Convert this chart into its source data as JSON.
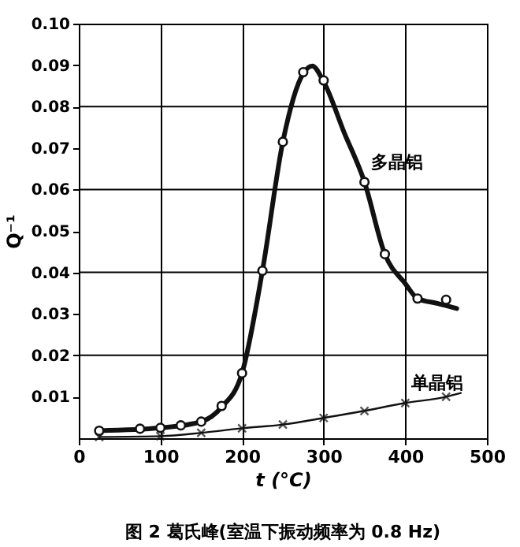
{
  "chart_data": {
    "type": "line",
    "title": "图 2  葛氏峰(室温下振动频率为 0.8 Hz)",
    "xlabel": "t (°C)",
    "ylabel": "Q⁻¹",
    "xlim": [
      0,
      500
    ],
    "xticks": [
      0,
      100,
      200,
      300,
      400,
      500
    ],
    "ylim": [
      0,
      0.1
    ],
    "yticks": [
      0.01,
      0.02,
      0.03,
      0.04,
      0.05,
      0.06,
      0.07,
      0.08,
      0.09,
      {
        "value": 0.1,
        "label": "0.10"
      }
    ],
    "grid": true,
    "series": [
      {
        "color": "#111111",
        "marker": "none",
        "x": [
          25,
          100,
          150,
          175,
          200,
          225,
          250,
          275,
          286,
          300,
          325,
          350,
          375,
          400,
          415,
          440,
          463
        ],
        "values": [
          0.0018,
          0.0025,
          0.004,
          0.0075,
          0.0157,
          0.0404,
          0.0715,
          0.088,
          0.0898,
          0.086,
          0.0738,
          0.0618,
          0.0444,
          0.0373,
          0.0337,
          0.0325,
          0.0313
        ]
      },
      {
        "type": "scatter",
        "color": "#111111",
        "marker": "circle",
        "x": [
          25,
          75,
          100,
          125,
          150,
          175,
          200,
          225,
          250,
          275,
          300,
          350,
          375,
          415,
          450
        ],
        "values": [
          0.0018,
          0.0023,
          0.0025,
          0.0031,
          0.004,
          0.0078,
          0.0157,
          0.0404,
          0.0715,
          0.0883,
          0.0863,
          0.0618,
          0.0444,
          0.0337,
          0.0334
        ]
      },
      {
        "color": "#111111",
        "marker": "none",
        "x": [
          25,
          100,
          150,
          200,
          250,
          300,
          350,
          400,
          450,
          468
        ],
        "values": [
          0.0003,
          0.0005,
          0.0013,
          0.0024,
          0.0033,
          0.0049,
          0.0066,
          0.0085,
          0.01,
          0.0109
        ]
      },
      {
        "type": "scatter",
        "color": "#111111",
        "marker": "cross",
        "x": [
          25,
          100,
          150,
          200,
          250,
          300,
          350,
          400,
          450
        ],
        "values": [
          0.0003,
          0.0005,
          0.0013,
          0.0024,
          0.0033,
          0.0049,
          0.0066,
          0.0085,
          0.01
        ]
      }
    ],
    "annotations": [
      {
        "text": "多晶铝",
        "x": 350,
        "y": 0.0618
      },
      {
        "text": "单晶铝",
        "x": 400,
        "y": 0.0085
      }
    ]
  }
}
